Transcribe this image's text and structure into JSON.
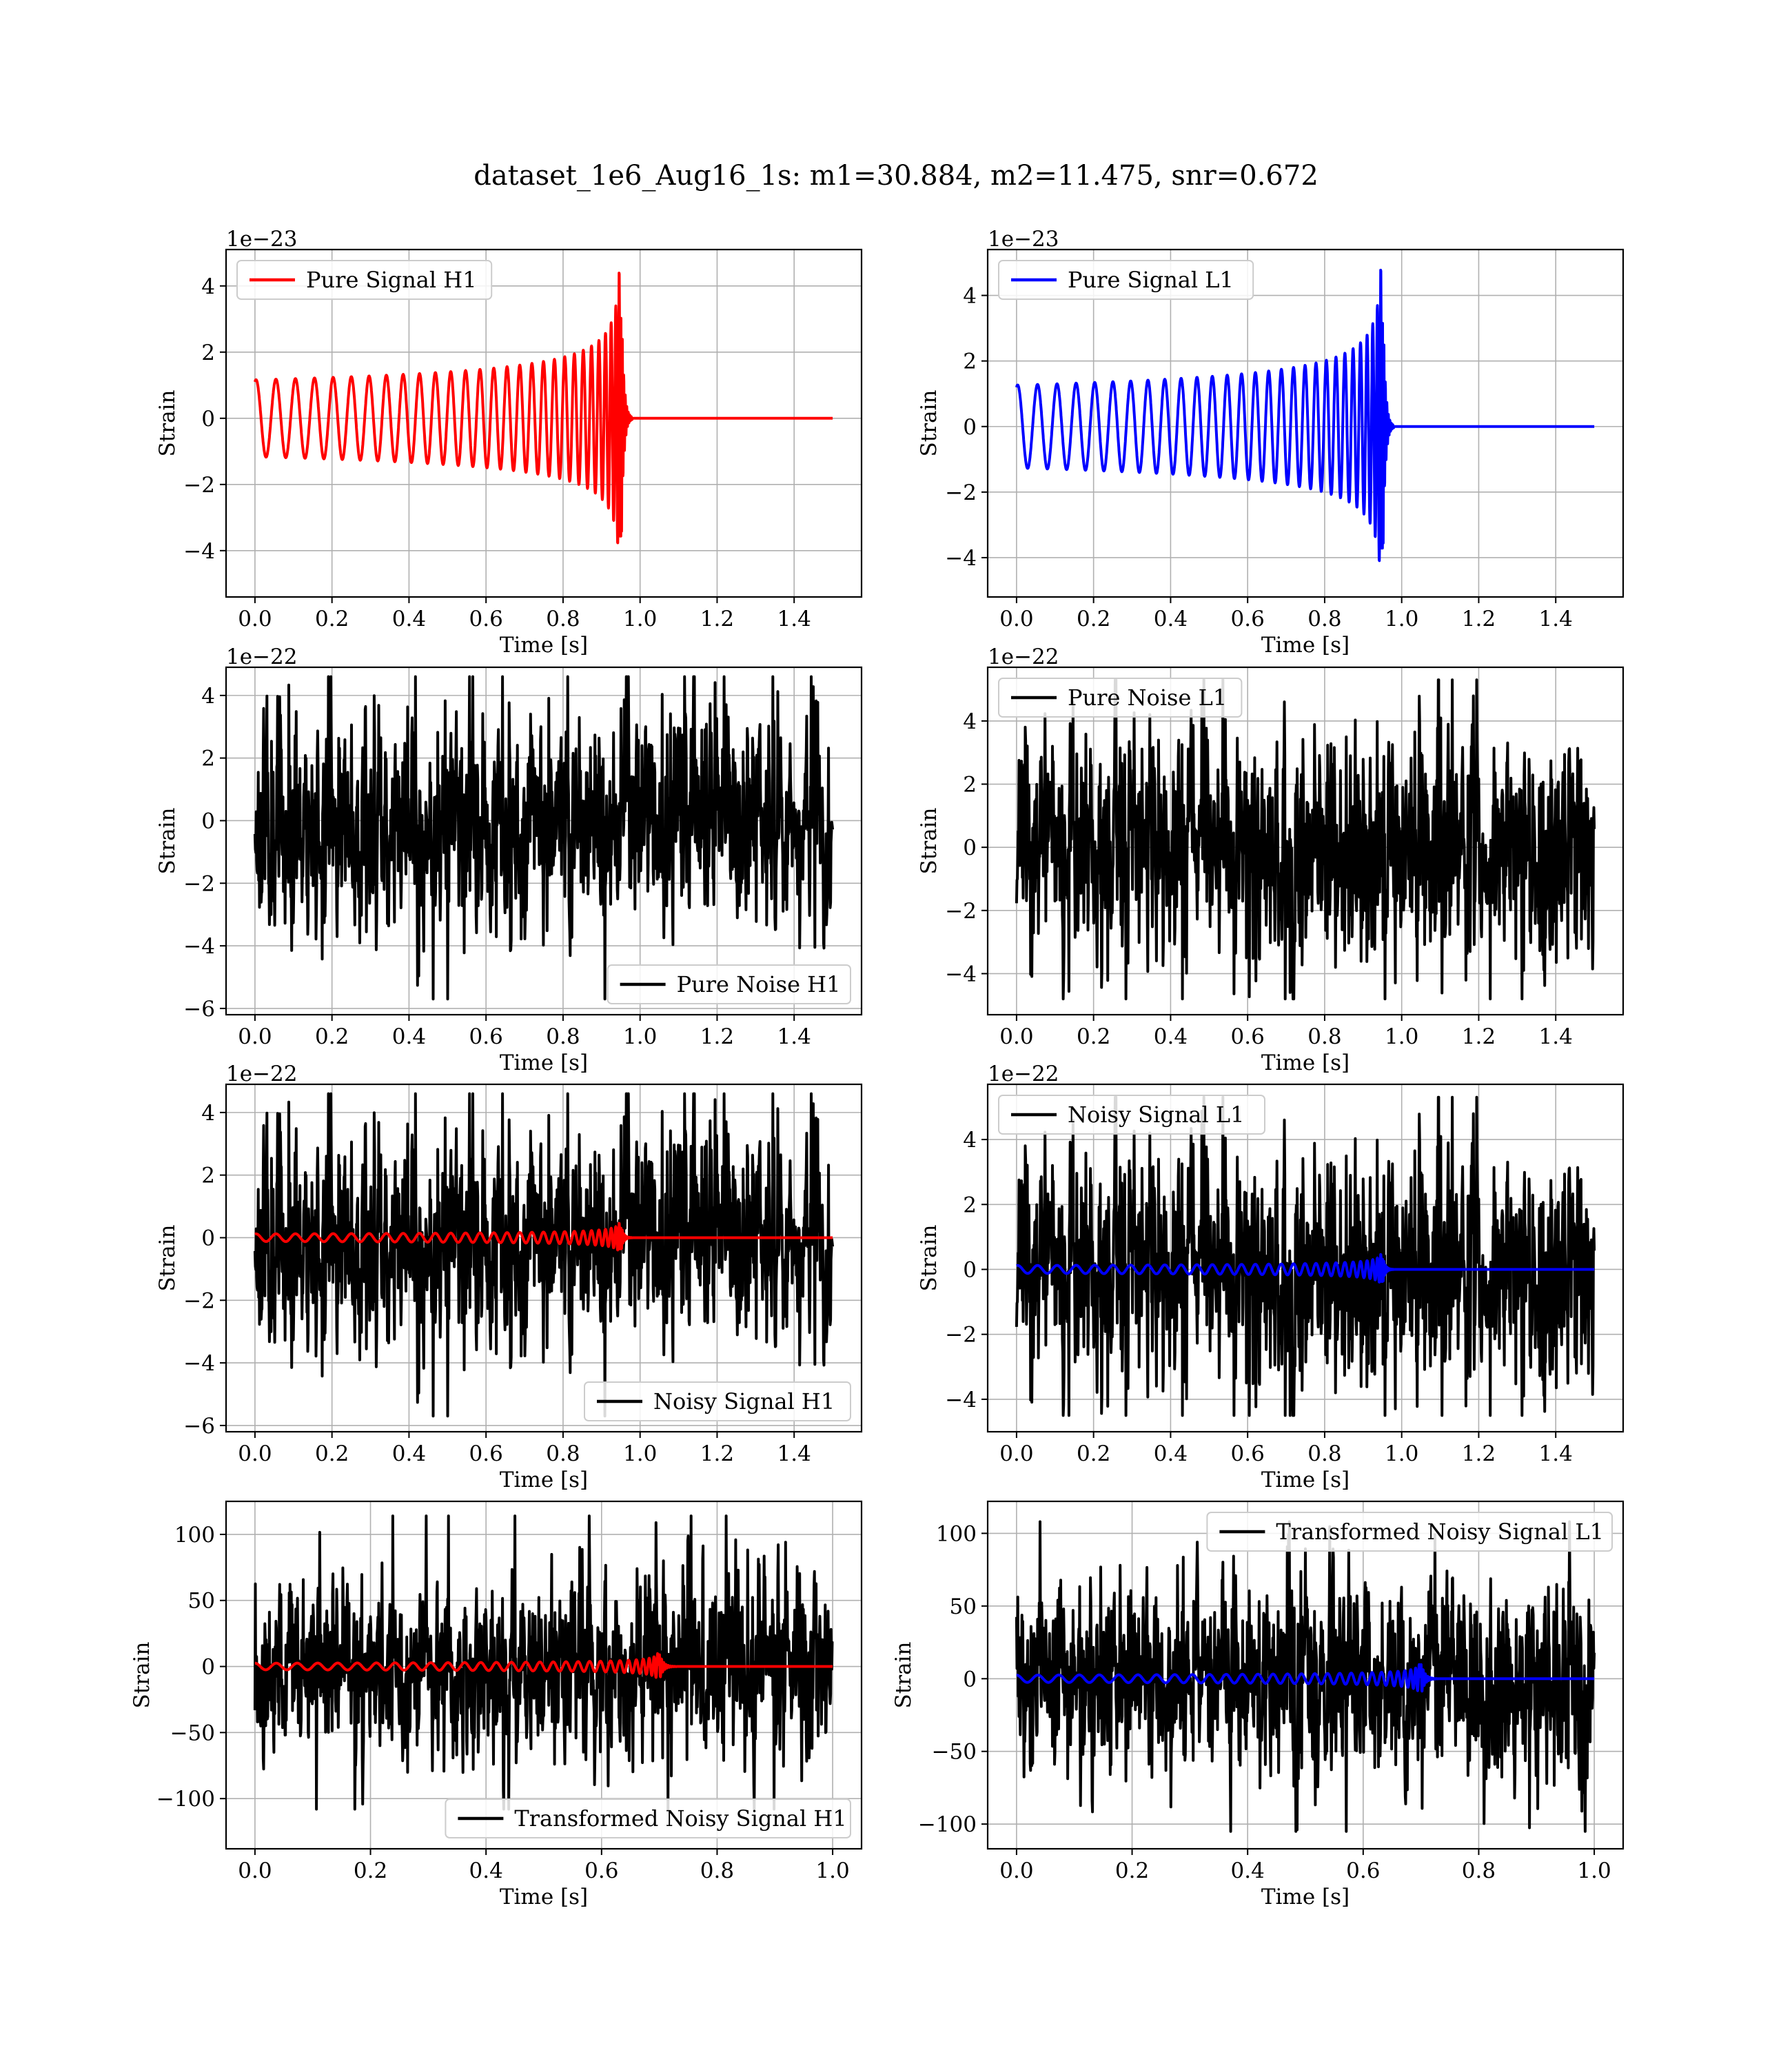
{
  "figure": {
    "title": "dataset_1e6_Aug16_1s: m1=30.884, m2=11.475, snr=0.672"
  },
  "chart_data": [
    {
      "id": "pure-signal-h1",
      "type": "line",
      "xlabel": "Time [s]",
      "ylabel": "Strain",
      "offset_text": "1e−23",
      "xlim": [
        -0.075,
        1.575
      ],
      "ylim": [
        -5.4,
        5.1
      ],
      "xticks": [
        "0.0",
        "0.2",
        "0.4",
        "0.6",
        "0.8",
        "1.0",
        "1.2",
        "1.4"
      ],
      "xtick_values": [
        0,
        0.2,
        0.4,
        0.6,
        0.8,
        1.0,
        1.2,
        1.4
      ],
      "yticks": [
        "−4",
        "−2",
        "0",
        "2",
        "4"
      ],
      "ytick_values": [
        -4,
        -2,
        0,
        2,
        4
      ],
      "legend": {
        "position": "upper left",
        "entries": [
          {
            "label": "Pure Signal H1",
            "color": "#ff0000"
          }
        ]
      },
      "series": [
        {
          "name": "Pure Signal H1",
          "color": "#ff0000",
          "kind": "chirp",
          "t_start": 0.0,
          "t_end": 1.5,
          "merger": 0.95,
          "amp_start": 1.15,
          "amp_peak": 4.8,
          "cycles": 30,
          "dur": 1.0
        }
      ]
    },
    {
      "id": "pure-signal-l1",
      "type": "line",
      "xlabel": "Time [s]",
      "ylabel": "Strain",
      "offset_text": "1e−23",
      "xlim": [
        -0.075,
        1.575
      ],
      "ylim": [
        -5.2,
        5.4
      ],
      "xticks": [
        "0.0",
        "0.2",
        "0.4",
        "0.6",
        "0.8",
        "1.0",
        "1.2",
        "1.4"
      ],
      "xtick_values": [
        0,
        0.2,
        0.4,
        0.6,
        0.8,
        1.0,
        1.2,
        1.4
      ],
      "yticks": [
        "−4",
        "−2",
        "0",
        "2",
        "4"
      ],
      "ytick_values": [
        -4,
        -2,
        0,
        2,
        4
      ],
      "legend": {
        "position": "upper left",
        "entries": [
          {
            "label": "Pure Signal L1",
            "color": "#0000ff"
          }
        ]
      },
      "series": [
        {
          "name": "Pure Signal L1",
          "color": "#0000ff",
          "kind": "chirp",
          "t_start": 0.0,
          "t_end": 1.5,
          "merger": 0.95,
          "amp_start": 1.25,
          "amp_peak": 5.0,
          "cycles": 30,
          "dur": 1.0
        }
      ]
    },
    {
      "id": "pure-noise-h1",
      "type": "line",
      "xlabel": "Time [s]",
      "ylabel": "Strain",
      "offset_text": "1e−22",
      "xlim": [
        -0.075,
        1.575
      ],
      "ylim": [
        -6.2,
        4.9
      ],
      "xticks": [
        "0.0",
        "0.2",
        "0.4",
        "0.6",
        "0.8",
        "1.0",
        "1.2",
        "1.4"
      ],
      "xtick_values": [
        0,
        0.2,
        0.4,
        0.6,
        0.8,
        1.0,
        1.2,
        1.4
      ],
      "yticks": [
        "−6",
        "−4",
        "−2",
        "0",
        "2",
        "4"
      ],
      "ytick_values": [
        -6,
        -4,
        -2,
        0,
        2,
        4
      ],
      "legend": {
        "position": "lower right",
        "entries": [
          {
            "label": "Pure Noise H1",
            "color": "#000000"
          }
        ]
      },
      "series": [
        {
          "name": "Pure Noise H1",
          "color": "#000000",
          "kind": "noise",
          "t_start": 0.0,
          "t_end": 1.5,
          "amp": 1.55,
          "min": -5.7,
          "max": 4.6,
          "seed": 11
        }
      ]
    },
    {
      "id": "pure-noise-l1",
      "type": "line",
      "xlabel": "Time [s]",
      "ylabel": "Strain",
      "offset_text": "1e−22",
      "xlim": [
        -0.075,
        1.575
      ],
      "ylim": [
        -5.3,
        5.7
      ],
      "xticks": [
        "0.0",
        "0.2",
        "0.4",
        "0.6",
        "0.8",
        "1.0",
        "1.2",
        "1.4"
      ],
      "xtick_values": [
        0,
        0.2,
        0.4,
        0.6,
        0.8,
        1.0,
        1.2,
        1.4
      ],
      "yticks": [
        "−4",
        "−2",
        "0",
        "2",
        "4"
      ],
      "ytick_values": [
        -4,
        -2,
        0,
        2,
        4
      ],
      "legend": {
        "position": "upper left",
        "entries": [
          {
            "label": "Pure Noise L1",
            "color": "#000000"
          }
        ]
      },
      "series": [
        {
          "name": "Pure Noise L1",
          "color": "#000000",
          "kind": "noise",
          "t_start": 0.0,
          "t_end": 1.5,
          "amp": 1.6,
          "min": -4.8,
          "max": 5.3,
          "seed": 23
        }
      ]
    },
    {
      "id": "noisy-signal-h1",
      "type": "line",
      "xlabel": "Time [s]",
      "ylabel": "Strain",
      "offset_text": "1e−22",
      "xlim": [
        -0.075,
        1.575
      ],
      "ylim": [
        -6.2,
        4.9
      ],
      "xticks": [
        "0.0",
        "0.2",
        "0.4",
        "0.6",
        "0.8",
        "1.0",
        "1.2",
        "1.4"
      ],
      "xtick_values": [
        0,
        0.2,
        0.4,
        0.6,
        0.8,
        1.0,
        1.2,
        1.4
      ],
      "yticks": [
        "−6",
        "−4",
        "−2",
        "0",
        "2",
        "4"
      ],
      "ytick_values": [
        -6,
        -4,
        -2,
        0,
        2,
        4
      ],
      "legend": {
        "position": "lower right",
        "entries": [
          {
            "label": "Noisy Signal H1",
            "color": "#000000"
          }
        ]
      },
      "series": [
        {
          "name": "Noisy Signal H1",
          "color": "#000000",
          "kind": "noise",
          "t_start": 0.0,
          "t_end": 1.5,
          "amp": 1.55,
          "min": -5.7,
          "max": 4.6,
          "seed": 11
        },
        {
          "color": "#ff0000",
          "kind": "chirp",
          "t_start": 0.0,
          "t_end": 1.5,
          "merger": 0.95,
          "amp_start": 0.12,
          "amp_peak": 0.48,
          "cycles": 30,
          "dur": 1.0
        }
      ]
    },
    {
      "id": "noisy-signal-l1",
      "type": "line",
      "xlabel": "Time [s]",
      "ylabel": "Strain",
      "offset_text": "1e−22",
      "xlim": [
        -0.075,
        1.575
      ],
      "ylim": [
        -5.0,
        5.7
      ],
      "xticks": [
        "0.0",
        "0.2",
        "0.4",
        "0.6",
        "0.8",
        "1.0",
        "1.2",
        "1.4"
      ],
      "xtick_values": [
        0,
        0.2,
        0.4,
        0.6,
        0.8,
        1.0,
        1.2,
        1.4
      ],
      "yticks": [
        "−4",
        "−2",
        "0",
        "2",
        "4"
      ],
      "ytick_values": [
        -4,
        -2,
        0,
        2,
        4
      ],
      "legend": {
        "position": "upper left",
        "entries": [
          {
            "label": "Noisy Signal L1",
            "color": "#000000"
          }
        ]
      },
      "series": [
        {
          "name": "Noisy Signal L1",
          "color": "#000000",
          "kind": "noise",
          "t_start": 0.0,
          "t_end": 1.5,
          "amp": 1.6,
          "min": -4.5,
          "max": 5.3,
          "seed": 23
        },
        {
          "color": "#0000ff",
          "kind": "chirp",
          "t_start": 0.0,
          "t_end": 1.5,
          "merger": 0.95,
          "amp_start": 0.12,
          "amp_peak": 0.5,
          "cycles": 30,
          "dur": 1.0
        }
      ]
    },
    {
      "id": "transformed-noisy-signal-h1",
      "type": "line",
      "xlabel": "Time [s]",
      "ylabel": "Strain",
      "offset_text": "",
      "xlim": [
        -0.05,
        1.05
      ],
      "ylim": [
        -138,
        125
      ],
      "xticks": [
        "0.0",
        "0.2",
        "0.4",
        "0.6",
        "0.8",
        "1.0"
      ],
      "xtick_values": [
        0,
        0.2,
        0.4,
        0.6,
        0.8,
        1.0
      ],
      "yticks": [
        "−100",
        "−50",
        "0",
        "50",
        "100"
      ],
      "ytick_values": [
        -100,
        -50,
        0,
        50,
        100
      ],
      "legend": {
        "position": "lower right",
        "entries": [
          {
            "label": "Transformed Noisy Signal H1",
            "color": "#000000"
          }
        ]
      },
      "series": [
        {
          "name": "Transformed Noisy Signal H1",
          "color": "#000000",
          "kind": "noise",
          "t_start": 0.0,
          "t_end": 1.0,
          "amp": 30,
          "min": -108,
          "max": 114,
          "seed": 37
        },
        {
          "color": "#ff0000",
          "kind": "chirp",
          "t_start": 0.0,
          "t_end": 1.0,
          "merger": 0.7,
          "amp_start": 2.5,
          "amp_peak": 11,
          "cycles": 30,
          "dur": 0.7
        }
      ]
    },
    {
      "id": "transformed-noisy-signal-l1",
      "type": "line",
      "xlabel": "Time [s]",
      "ylabel": "Strain",
      "offset_text": "",
      "xlim": [
        -0.05,
        1.05
      ],
      "ylim": [
        -117,
        122
      ],
      "xticks": [
        "0.0",
        "0.2",
        "0.4",
        "0.6",
        "0.8",
        "1.0"
      ],
      "xtick_values": [
        0,
        0.2,
        0.4,
        0.6,
        0.8,
        1.0
      ],
      "yticks": [
        "−100",
        "−50",
        "0",
        "50",
        "100"
      ],
      "ytick_values": [
        -100,
        -50,
        0,
        50,
        100
      ],
      "legend": {
        "position": "upper right",
        "entries": [
          {
            "label": "Transformed Noisy Signal L1",
            "color": "#000000"
          }
        ]
      },
      "series": [
        {
          "name": "Transformed Noisy Signal L1",
          "color": "#000000",
          "kind": "noise",
          "t_start": 0.0,
          "t_end": 1.0,
          "amp": 30,
          "min": -105,
          "max": 108,
          "seed": 53
        },
        {
          "color": "#0000ff",
          "kind": "chirp",
          "t_start": 0.0,
          "t_end": 1.0,
          "merger": 0.7,
          "amp_start": 2.5,
          "amp_peak": 12,
          "cycles": 30,
          "dur": 0.7
        }
      ]
    }
  ]
}
